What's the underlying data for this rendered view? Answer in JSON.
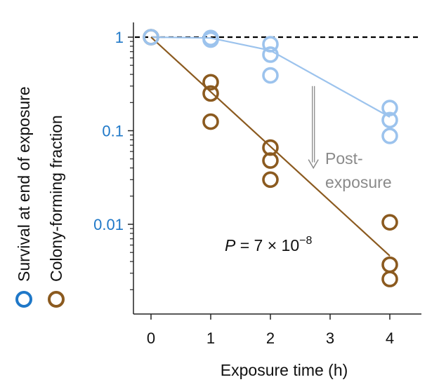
{
  "chart_data": {
    "type": "scatter",
    "xlabel": "Exposure time (h)",
    "ylabel": "",
    "x_ticks": [
      0,
      1,
      2,
      3,
      4
    ],
    "xlim": [
      -0.3,
      4.5
    ],
    "y_scale": "log",
    "y_ticks": [
      {
        "value": 1,
        "label": "1"
      },
      {
        "value": 0.1,
        "label": "0.1"
      },
      {
        "value": 0.01,
        "label": "0.01"
      }
    ],
    "ylim": [
      0.00045,
      1.3
    ],
    "reference_line": {
      "y": 1,
      "style": "dashed",
      "color": "#000000"
    },
    "grid": false,
    "legend_position": "left-vertical",
    "colors": {
      "survival": "#9cc3ed",
      "colony": "#8b5a1f",
      "survival_legend": "#1f78c8",
      "colony_legend": "#8b5a1f",
      "ytick_label": "#1f78c8",
      "annotation": "#8a8a8a",
      "axis": "#222222"
    },
    "series": [
      {
        "name": "Survival at end of exposure",
        "points": [
          {
            "x": 0,
            "y": 1
          },
          {
            "x": 1,
            "y": 0.98
          },
          {
            "x": 1,
            "y": 0.94
          },
          {
            "x": 2,
            "y": 0.84
          },
          {
            "x": 2,
            "y": 0.65
          },
          {
            "x": 2,
            "y": 0.39
          },
          {
            "x": 4,
            "y": 0.175
          },
          {
            "x": 4,
            "y": 0.13
          },
          {
            "x": 4,
            "y": 0.088
          }
        ],
        "fit": [
          {
            "x": 0,
            "y": 1
          },
          {
            "x": 1,
            "y": 0.98
          },
          {
            "x": 2,
            "y": 0.72
          },
          {
            "x": 4,
            "y": 0.14
          }
        ]
      },
      {
        "name": "Colony-forming fraction",
        "points": [
          {
            "x": 0,
            "y": 1
          },
          {
            "x": 1,
            "y": 0.33
          },
          {
            "x": 1,
            "y": 0.25
          },
          {
            "x": 1,
            "y": 0.125
          },
          {
            "x": 2,
            "y": 0.066
          },
          {
            "x": 2,
            "y": 0.048
          },
          {
            "x": 2,
            "y": 0.03
          },
          {
            "x": 4,
            "y": 0.0105
          },
          {
            "x": 4,
            "y": 0.0037
          },
          {
            "x": 4,
            "y": 0.0026
          }
        ],
        "fit": [
          {
            "x": 0,
            "y": 1
          },
          {
            "x": 4,
            "y": 0.0046
          }
        ]
      }
    ],
    "annotations": {
      "post_exposure_line1": "Post-",
      "post_exposure_line2": "exposure",
      "arrow": {
        "x": 2.72,
        "y_from": 0.3,
        "y_to": 0.04
      },
      "p_value_prefix": "P",
      "p_value_eq": " = 7 × 10",
      "p_value_exp": "−8"
    }
  }
}
